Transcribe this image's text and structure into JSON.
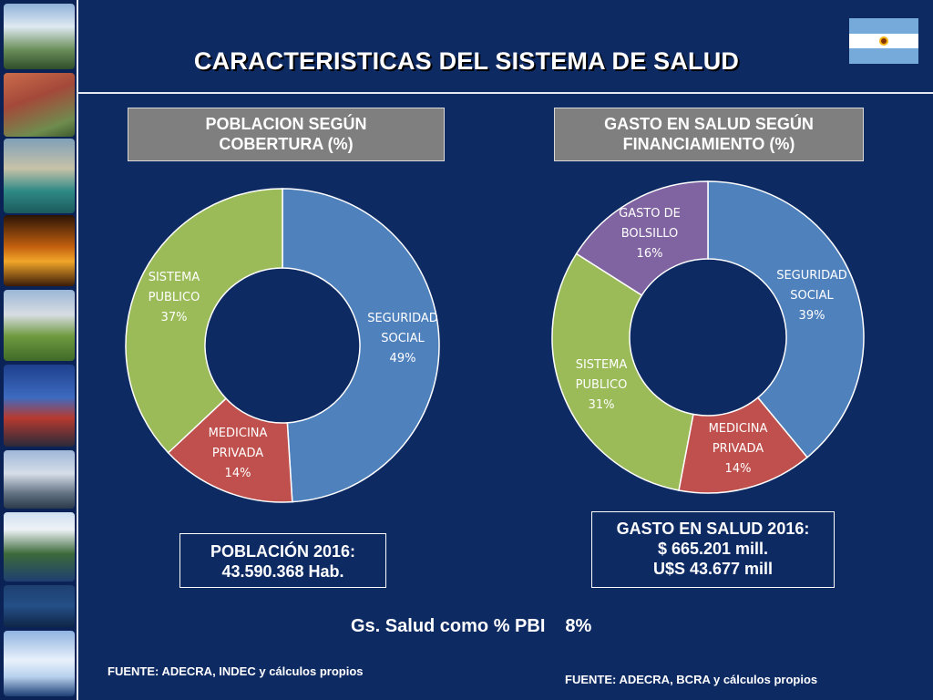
{
  "slide": {
    "title": "CARACTERISTICAS DEL SISTEMA DE SALUD"
  },
  "colors": {
    "background": "#0d2a63",
    "seguridad_social": "#4f81bd",
    "medicina_privada": "#c0504d",
    "sistema_publico": "#9bbb59",
    "gasto_de_bolsillo": "#8064a2"
  },
  "chart_data": [
    {
      "type": "pie",
      "title": [
        "POBLACION SEGÚN",
        "COBERTURA (%)"
      ],
      "slices": [
        {
          "label": [
            "SEGURIDAD",
            "SOCIAL"
          ],
          "pct_label": "49%",
          "value": 49
        },
        {
          "label": [
            "MEDICINA",
            "PRIVADA"
          ],
          "pct_label": "14%",
          "value": 14
        },
        {
          "label": [
            "SISTEMA",
            "PUBLICO"
          ],
          "pct_label": "37%",
          "value": 37
        }
      ]
    },
    {
      "type": "pie",
      "title": [
        "GASTO EN SALUD SEGÚN",
        "FINANCIAMIENTO (%)"
      ],
      "slices": [
        {
          "label": [
            "SEGURIDAD",
            "SOCIAL"
          ],
          "pct_label": "39%",
          "value": 39
        },
        {
          "label": [
            "MEDICINA",
            "PRIVADA"
          ],
          "pct_label": "14%",
          "value": 14
        },
        {
          "label": [
            "SISTEMA",
            "PUBLICO"
          ],
          "pct_label": "31%",
          "value": 31
        },
        {
          "label": [
            "GASTO DE",
            "BOLSILLO"
          ],
          "pct_label": "16%",
          "value": 16
        }
      ]
    }
  ],
  "poblacion_box": {
    "line1": "POBLACIÓN 2016:",
    "line2": "43.590.368 Hab."
  },
  "gasto_box": {
    "line1": "GASTO EN SALUD 2016:",
    "line2": "$ 665.201 mill.",
    "line3": "U$S 43.677  mill"
  },
  "pbi": {
    "label": "Gs. Salud como % PBI",
    "value": "8%"
  },
  "sources": {
    "left": "FUENTE: ADECRA, INDEC y cálculos propios",
    "right": "FUENTE: ADECRA, BCRA y cálculos propios"
  }
}
